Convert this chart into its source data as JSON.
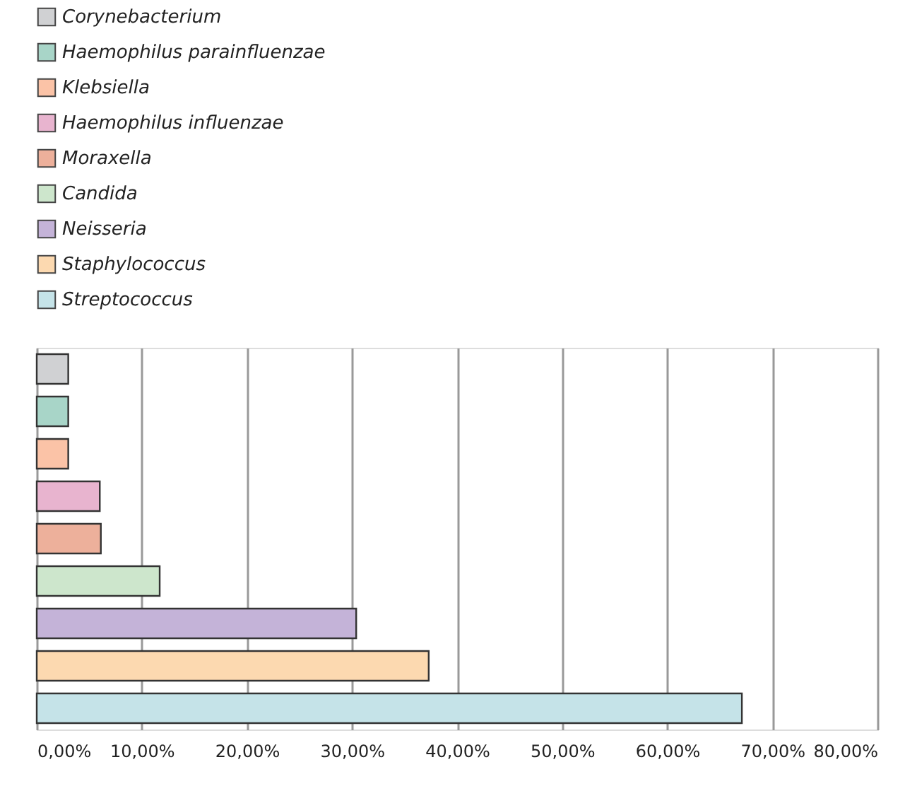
{
  "chart_data": {
    "type": "bar",
    "orientation": "horizontal",
    "categories": [
      null,
      null,
      null,
      null,
      null,
      null,
      null,
      null,
      null
    ],
    "series": [
      {
        "name": "Corynebacterium",
        "color": "#d0d1d3",
        "values": [
          3.0,
          null,
          null,
          null,
          null,
          null,
          null,
          null,
          null
        ]
      },
      {
        "name": "Haemophilus parainfluenzae",
        "color": "#a8d5c8",
        "values": [
          null,
          3.0,
          null,
          null,
          null,
          null,
          null,
          null,
          null
        ]
      },
      {
        "name": "Klebsiella",
        "color": "#fbc3a7",
        "values": [
          null,
          null,
          3.0,
          null,
          null,
          null,
          null,
          null,
          null
        ]
      },
      {
        "name": "Haemophilus influenzae",
        "color": "#e8b4cf",
        "values": [
          null,
          null,
          null,
          6.0,
          null,
          null,
          null,
          null,
          null
        ]
      },
      {
        "name": "Moraxella",
        "color": "#edb09b",
        "values": [
          null,
          null,
          null,
          null,
          6.1,
          null,
          null,
          null,
          null
        ]
      },
      {
        "name": "Candida",
        "color": "#cde6cc",
        "values": [
          null,
          null,
          null,
          null,
          null,
          11.7,
          null,
          null,
          null
        ]
      },
      {
        "name": "Neisseria",
        "color": "#c4b3d8",
        "values": [
          null,
          null,
          null,
          null,
          null,
          null,
          30.4,
          null,
          null
        ]
      },
      {
        "name": "Staphylococcus",
        "color": "#fcd9b0",
        "values": [
          null,
          null,
          null,
          null,
          null,
          null,
          null,
          37.3,
          null
        ]
      },
      {
        "name": "Streptococcus",
        "color": "#c5e3e8",
        "values": [
          null,
          null,
          null,
          null,
          null,
          null,
          null,
          null,
          67.1
        ]
      }
    ],
    "xlim": [
      0,
      80
    ],
    "xticks": [
      {
        "value": 0,
        "label": "0,00%"
      },
      {
        "value": 10,
        "label": "10,00%"
      },
      {
        "value": 20,
        "label": "20,00%"
      },
      {
        "value": 30,
        "label": "30,00%"
      },
      {
        "value": 40,
        "label": "40,00%"
      },
      {
        "value": 50,
        "label": "50,00%"
      },
      {
        "value": 60,
        "label": "60,00%"
      },
      {
        "value": 70,
        "label": "70,00%"
      },
      {
        "value": 80,
        "label": "80,00%"
      }
    ],
    "grid": "x",
    "legend": "top",
    "tick_labels": "x"
  }
}
